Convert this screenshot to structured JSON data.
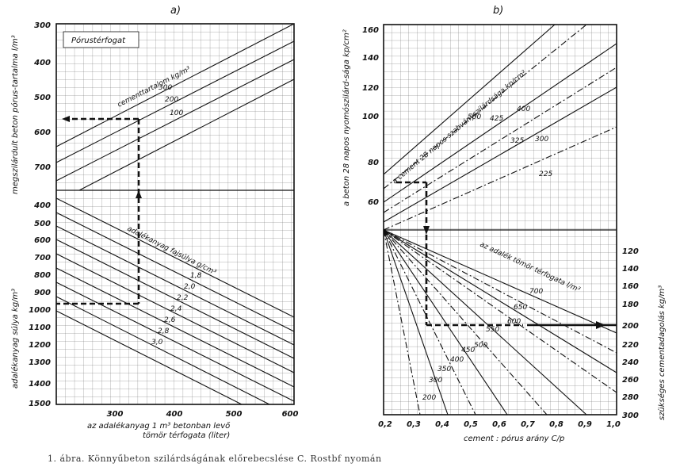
{
  "panel_a": {
    "title": "a)",
    "box_label": "Pórustérfogat",
    "top_ticks": [
      "300",
      "400",
      "500",
      "600",
      "700"
    ],
    "bottom_ticks": [
      "400",
      "500",
      "600",
      "700",
      "800",
      "900",
      "1000",
      "1100",
      "1200",
      "1300",
      "1400",
      "1500"
    ],
    "x_ticks": [
      "300",
      "400",
      "500",
      "600"
    ],
    "ylabel_top": "megszilárdult beton pórus-tartalma l/m³",
    "ylabel_bottom": "adalékanyag súlya kg/m³",
    "xlabel_1": "az adalékanyag 1 m³ betonban levő",
    "xlabel_2": "tömör térfogata (liter)",
    "cement_label": "cementtartalom kg/m³",
    "cement_values": [
      "300",
      "200",
      "100"
    ],
    "density_label": "adalékanyag fajsúlya g/cm³",
    "density_values": [
      "1,8",
      "2,0",
      "2,2",
      "2,4",
      "2,6",
      "2,8",
      "3,0"
    ]
  },
  "panel_b": {
    "title": "b)",
    "left_ticks": [
      "160",
      "140",
      "120",
      "100",
      "80",
      "60"
    ],
    "right_ticks": [
      "120",
      "140",
      "160",
      "180",
      "200",
      "220",
      "240",
      "260",
      "280",
      "300"
    ],
    "x_ticks": [
      "0,2",
      "0,3",
      "0,4",
      "0,5",
      "0,6",
      "0,7",
      "0,8",
      "0,9",
      "1,0"
    ],
    "ylabel_left": "a beton 28 napos nyomószilárd-sága kp/cm²",
    "ylabel_right": "szükséges cementadagolás kg/m³",
    "xlabel": "cement : pórus arány C/p",
    "strength_label": "a cement 28 napos szabványszilárdsága kp/cm²",
    "strength_values": [
      "500",
      "425",
      "400",
      "325",
      "300",
      "225"
    ],
    "aggregate_label": "az adalék tömör térfogata l/m³",
    "aggregate_values": [
      "700",
      "650",
      "600",
      "550",
      "500",
      "450",
      "400",
      "350",
      "300",
      "200"
    ]
  },
  "caption": "1. ábra. Könnyűbeton szilárdságának előrebecslése C. Rostbf nyomán"
}
